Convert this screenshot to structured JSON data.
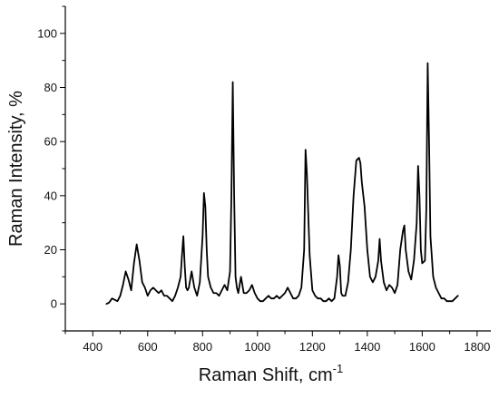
{
  "chart_data": {
    "type": "line",
    "title": "",
    "xlabel": "Raman Shift, cm",
    "xlabel_superscript": "-1",
    "ylabel": "Raman Intensity, %",
    "xlim": [
      300,
      1850
    ],
    "ylim": [
      -10,
      110
    ],
    "xticks": [
      400,
      600,
      800,
      1000,
      1200,
      1400,
      1600,
      1800
    ],
    "yticks": [
      0,
      20,
      40,
      60,
      80,
      100
    ],
    "grid": false,
    "legend": "none",
    "series": [
      {
        "color": "#000000",
        "x": [
          450,
          460,
          470,
          480,
          490,
          500,
          510,
          520,
          530,
          540,
          550,
          560,
          570,
          580,
          590,
          600,
          610,
          620,
          630,
          640,
          650,
          660,
          670,
          680,
          690,
          700,
          710,
          720,
          725,
          730,
          735,
          740,
          745,
          750,
          760,
          770,
          780,
          790,
          800,
          805,
          810,
          815,
          820,
          830,
          840,
          850,
          860,
          870,
          880,
          890,
          900,
          905,
          910,
          915,
          920,
          925,
          930,
          940,
          950,
          960,
          970,
          980,
          990,
          1000,
          1010,
          1020,
          1030,
          1040,
          1050,
          1060,
          1070,
          1080,
          1090,
          1100,
          1110,
          1120,
          1130,
          1140,
          1150,
          1160,
          1170,
          1175,
          1180,
          1190,
          1200,
          1210,
          1220,
          1230,
          1240,
          1250,
          1260,
          1270,
          1280,
          1290,
          1295,
          1300,
          1305,
          1310,
          1320,
          1330,
          1340,
          1350,
          1360,
          1370,
          1375,
          1380,
          1390,
          1400,
          1410,
          1420,
          1430,
          1440,
          1445,
          1450,
          1460,
          1470,
          1480,
          1490,
          1500,
          1510,
          1520,
          1530,
          1535,
          1540,
          1550,
          1560,
          1570,
          1580,
          1585,
          1590,
          1595,
          1600,
          1610,
          1615,
          1620,
          1625,
          1630,
          1640,
          1650,
          1660,
          1670,
          1680,
          1690,
          1700,
          1710,
          1720,
          1730
        ],
        "y": [
          0,
          0.5,
          2,
          1.5,
          1,
          3,
          7,
          12,
          9,
          5,
          15,
          22,
          16,
          8,
          6,
          3,
          5,
          6,
          5,
          4,
          5,
          3,
          3,
          2,
          1,
          3,
          6,
          10,
          18,
          25,
          14,
          6,
          5,
          6,
          12,
          6,
          3,
          8,
          25,
          41,
          36,
          20,
          10,
          6,
          4,
          4,
          3,
          5,
          7,
          5,
          12,
          40,
          82,
          40,
          10,
          6,
          4,
          10,
          4,
          4,
          5,
          7,
          4,
          2,
          1,
          1,
          2,
          3,
          2,
          2,
          3,
          2,
          3,
          4,
          6,
          4,
          2,
          2,
          3,
          6,
          20,
          57,
          48,
          18,
          5,
          3,
          2,
          2,
          1,
          1,
          2,
          1,
          2,
          10,
          18,
          14,
          4,
          3,
          3,
          8,
          20,
          40,
          53,
          54,
          52,
          45,
          36,
          20,
          10,
          8,
          10,
          16,
          24,
          16,
          8,
          5,
          7,
          6,
          4,
          7,
          20,
          27,
          29,
          20,
          12,
          9,
          16,
          30,
          51,
          40,
          20,
          15,
          16,
          35,
          89,
          60,
          25,
          10,
          6,
          4,
          2,
          2,
          1,
          1,
          1,
          2,
          3
        ]
      }
    ]
  }
}
